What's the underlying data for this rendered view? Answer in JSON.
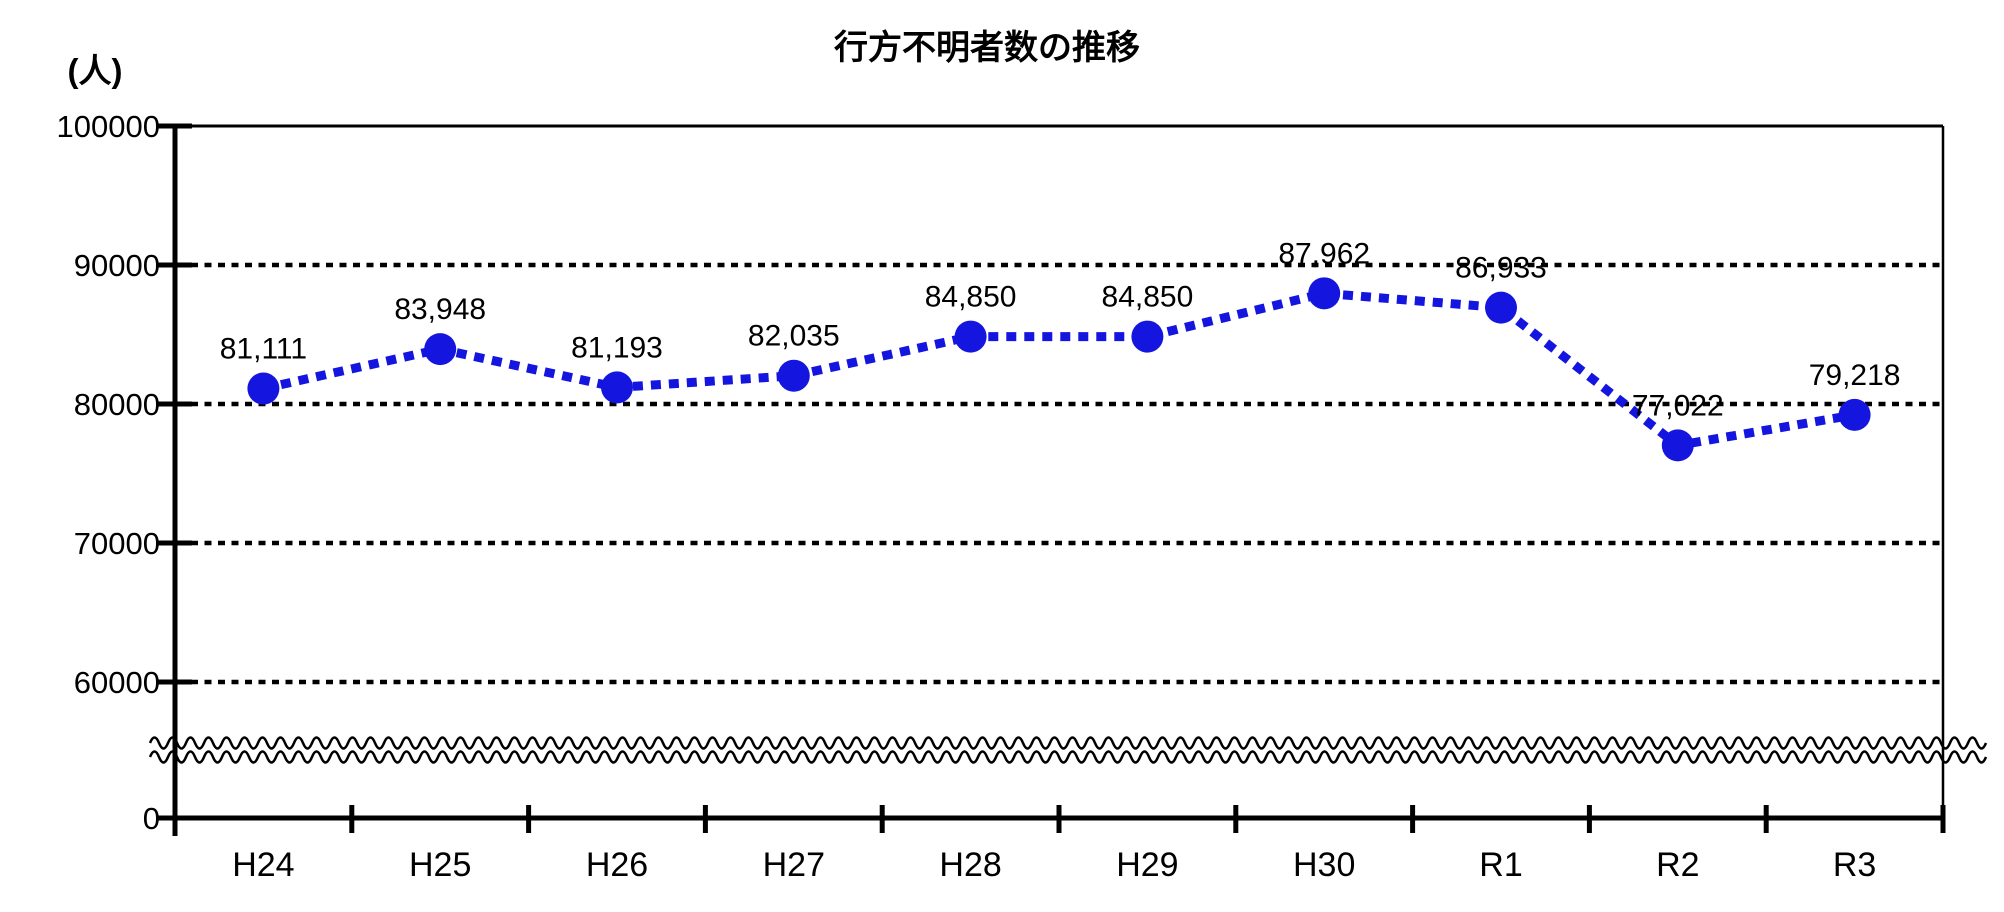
{
  "title": "行方不明者数の推移",
  "y_axis_unit_label": "(人)",
  "colors": {
    "line": "#1515E0",
    "axis": "#000000",
    "background": "#FFFFFF"
  },
  "chart_data": {
    "type": "line",
    "title": "行方不明者数の推移",
    "ylabel": "(人)",
    "xlabel": "",
    "categories": [
      "H24",
      "H25",
      "H26",
      "H27",
      "H28",
      "H29",
      "H30",
      "R1",
      "R2",
      "R3"
    ],
    "series": [
      {
        "values": [
          81111,
          83948,
          81193,
          82035,
          84850,
          84850,
          87962,
          86933,
          77022,
          79218
        ],
        "labels": [
          "81,111",
          "83,948",
          "81,193",
          "82,035",
          "84,850",
          "84,850",
          "87,962",
          "86,933",
          "77,022",
          "79,218"
        ],
        "color": "#1515E0",
        "line_style": "dotted",
        "marker": "filled-circle"
      }
    ],
    "y_ticks": [
      {
        "value": 100000,
        "label": "100000",
        "grid": "solid"
      },
      {
        "value": 90000,
        "label": "90000",
        "grid": "dotted"
      },
      {
        "value": 80000,
        "label": "80000",
        "grid": "dotted"
      },
      {
        "value": 70000,
        "label": "70000",
        "grid": "dotted"
      },
      {
        "value": 60000,
        "label": "60000",
        "grid": "dotted"
      },
      {
        "value": 0,
        "label": "0",
        "grid": "none"
      }
    ],
    "ylim": [
      0,
      100000
    ],
    "axis_break": true,
    "legend": "none",
    "grid": "horizontal-dotted"
  }
}
